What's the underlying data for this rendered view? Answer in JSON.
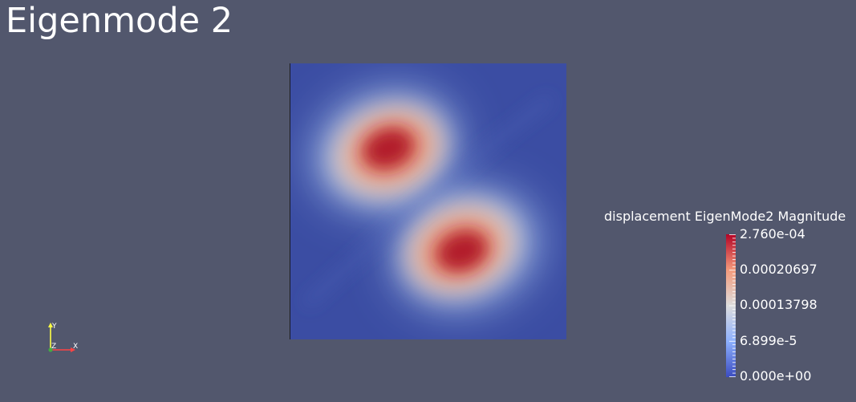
{
  "view": {
    "title": "Eigenmode 2"
  },
  "colorbar": {
    "title": "displacement EigenMode2 Magnitude",
    "ticks": [
      "2.760e-04",
      "0.00020697",
      "0.00013798",
      "6.899e-5",
      "0.000e+00"
    ],
    "range": [
      0.0,
      0.000276
    ],
    "colormap": [
      "#3b4cc0",
      "#8db0fe",
      "#dddddd",
      "#f49a7b",
      "#b40426"
    ]
  },
  "axes": {
    "x_label": "X",
    "y_label": "Y",
    "z_label": "Z",
    "x_color": "#ff4444",
    "y_color": "#ffff44",
    "z_color": "#44ff44"
  },
  "background_color": "#52576d"
}
